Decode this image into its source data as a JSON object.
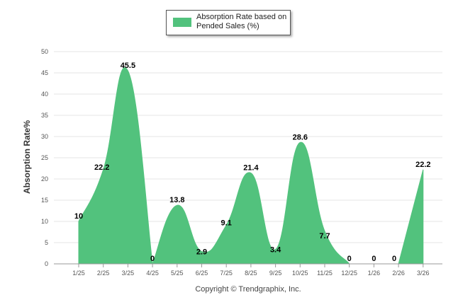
{
  "colors": {
    "series": "#52c27d",
    "grid": "#e6e6e6",
    "axis": "#9a9a9a"
  },
  "legend": {
    "label": "Absorption Rate based on Pended Sales (%)"
  },
  "copyright": "Copyright © Trendgraphix, Inc.",
  "chart_data": {
    "type": "area",
    "title": "",
    "xlabel": "",
    "ylabel": "Absorption Rate%",
    "ylim": [
      0,
      50
    ],
    "yticks": [
      0,
      5,
      10,
      15,
      20,
      25,
      30,
      35,
      40,
      45,
      50
    ],
    "grid": true,
    "legend_position": "top-center",
    "categories": [
      "1/25",
      "2/25",
      "3/25",
      "4/25",
      "5/25",
      "6/25",
      "7/25",
      "8/25",
      "9/25",
      "10/25",
      "11/25",
      "12/25",
      "1/26",
      "2/26",
      "3/26"
    ],
    "series": [
      {
        "name": "Absorption Rate based on Pended Sales (%)",
        "values": [
          10,
          22.2,
          45.5,
          0,
          13.8,
          2.9,
          9.1,
          21.4,
          3.4,
          28.6,
          7.7,
          0,
          0,
          0,
          22.2
        ],
        "labels": [
          "10",
          "22.2",
          "45.5",
          "0",
          "13.8",
          "2.9",
          "9.1",
          "21.4",
          "3.4",
          "28.6",
          "7.7",
          "0",
          "0",
          "0",
          "22.2"
        ]
      }
    ]
  }
}
